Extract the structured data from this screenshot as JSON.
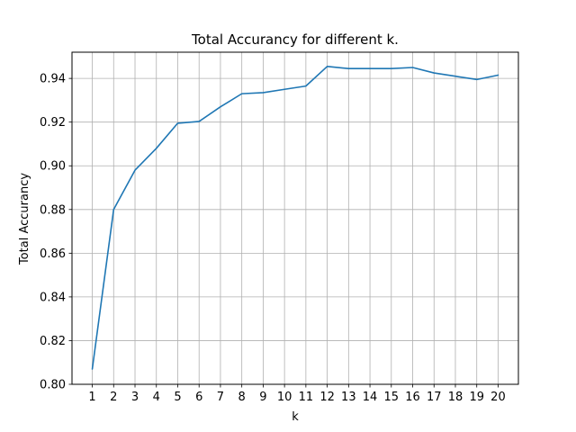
{
  "chart_data": {
    "type": "line",
    "title": "Total Accurancy for different k.",
    "xlabel": "k",
    "ylabel": "Total Accurancy",
    "x": [
      1,
      2,
      3,
      4,
      5,
      6,
      7,
      8,
      9,
      10,
      11,
      12,
      13,
      14,
      15,
      16,
      17,
      18,
      19,
      20
    ],
    "xtick_labels": [
      "1",
      "2",
      "3",
      "4",
      "5",
      "6",
      "7",
      "8",
      "9",
      "10",
      "11",
      "12",
      "13",
      "14",
      "15",
      "16",
      "17",
      "18",
      "19",
      "20"
    ],
    "yticks": [
      0.8,
      0.82,
      0.84,
      0.86,
      0.88,
      0.9,
      0.92,
      0.94
    ],
    "ytick_labels": [
      "0.80",
      "0.82",
      "0.84",
      "0.86",
      "0.88",
      "0.90",
      "0.92",
      "0.94"
    ],
    "series": [
      {
        "name": "Total Accurancy",
        "color": "#1f77b4",
        "values": [
          0.807,
          0.88,
          0.898,
          0.908,
          0.9195,
          0.9203,
          0.927,
          0.933,
          0.9335,
          0.935,
          0.9365,
          0.9455,
          0.9445,
          0.9445,
          0.9445,
          0.945,
          0.9425,
          0.941,
          0.9395,
          0.9415
        ]
      }
    ],
    "xlim": [
      0.05,
      20.95
    ],
    "ylim": [
      0.8,
      0.952
    ],
    "grid": true,
    "grid_color": "#b0b0b0",
    "legend": "none"
  }
}
